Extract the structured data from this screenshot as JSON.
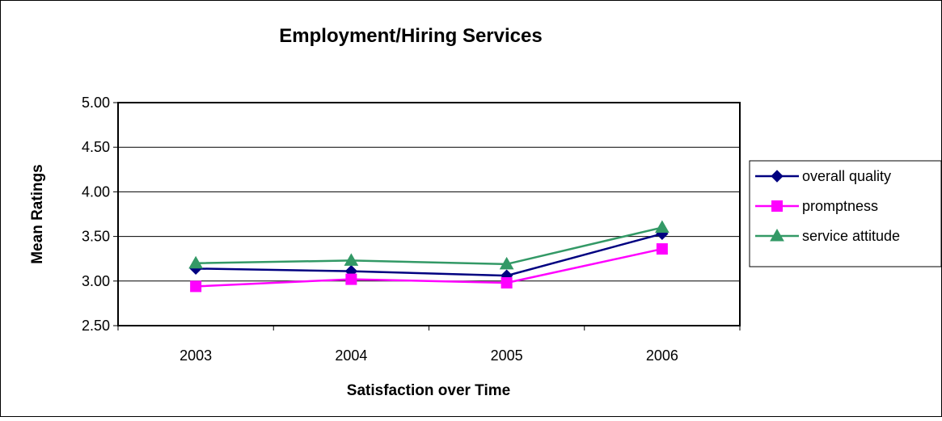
{
  "chart_data": {
    "type": "line",
    "title": "Employment/Hiring Services",
    "xlabel": "Satisfaction over Time",
    "ylabel": "Mean Ratings",
    "categories": [
      "2003",
      "2004",
      "2005",
      "2006"
    ],
    "ylim": [
      2.5,
      5.0
    ],
    "yticks": [
      "2.50",
      "3.00",
      "3.50",
      "4.00",
      "4.50",
      "5.00"
    ],
    "grid": true,
    "legend_position": "right",
    "series": [
      {
        "name": "overall quality",
        "values": [
          3.14,
          3.11,
          3.06,
          3.53
        ],
        "color": "#000080",
        "marker": "diamond"
      },
      {
        "name": "promptness",
        "values": [
          2.94,
          3.02,
          2.98,
          3.36
        ],
        "color": "#FF00FF",
        "marker": "square"
      },
      {
        "name": "service attitude",
        "values": [
          3.2,
          3.23,
          3.19,
          3.6
        ],
        "color": "#339966",
        "marker": "triangle"
      }
    ]
  }
}
